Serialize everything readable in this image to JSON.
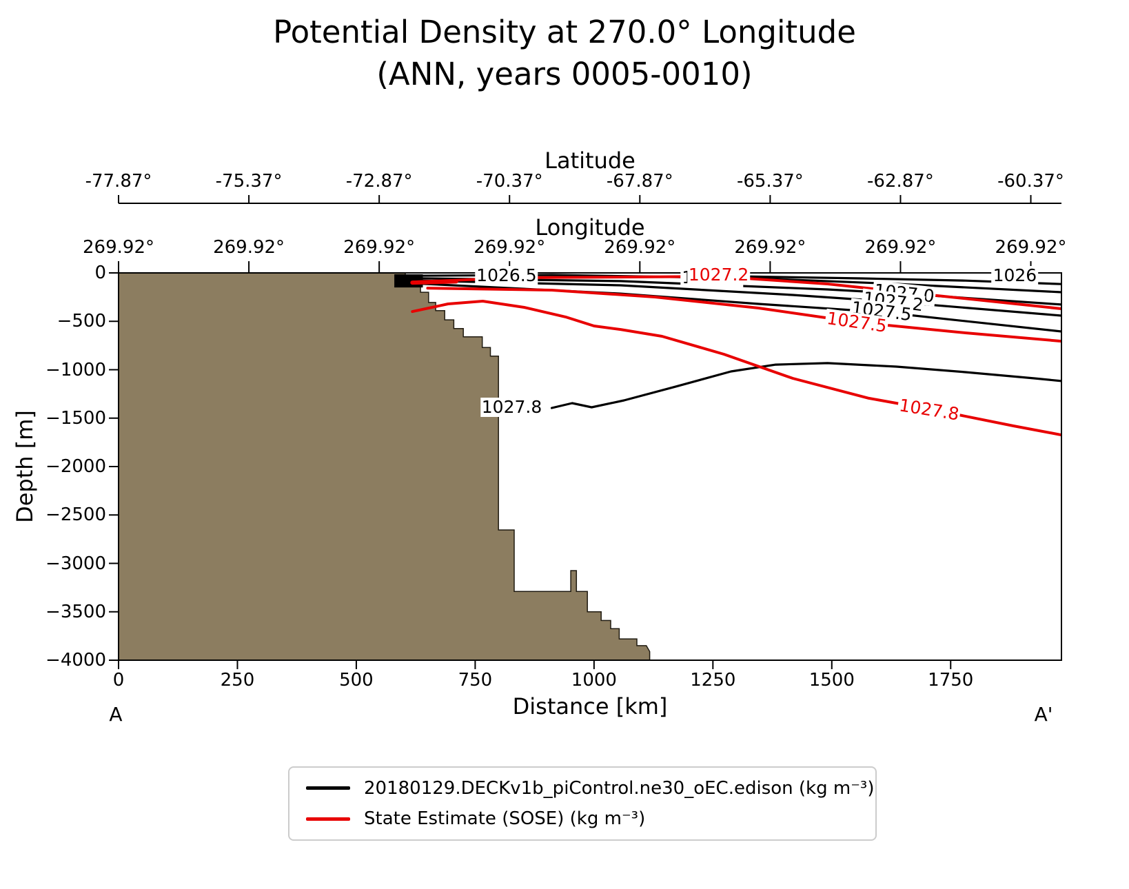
{
  "chart_data": {
    "type": "contour-section",
    "title": "Potential Density at 270.0° Longitude",
    "subtitle": "(ANN, years 0005-0010)",
    "axes": {
      "latitude": {
        "label": "Latitude",
        "ticks": [
          "-77.87°",
          "-75.37°",
          "-72.87°",
          "-70.37°",
          "-67.87°",
          "-65.37°",
          "-62.87°",
          "-60.37°"
        ]
      },
      "longitude": {
        "label": "Longitude",
        "ticks": [
          "269.92°",
          "269.92°",
          "269.92°",
          "269.92°",
          "269.92°",
          "269.92°",
          "269.92°",
          "269.92°"
        ]
      },
      "depth": {
        "label": "Depth [m]",
        "ticks": [
          "0",
          "−500",
          "−1000",
          "−1500",
          "−2000",
          "−2500",
          "−3000",
          "−3500",
          "−4000"
        ],
        "range_m": [
          0,
          -4000
        ]
      },
      "distance": {
        "label": "Distance [km]",
        "ticks": [
          "0",
          "250",
          "500",
          "750",
          "1000",
          "1250",
          "1500",
          "1750"
        ],
        "tick_values_km": [
          0,
          250,
          500,
          750,
          1000,
          1250,
          1500,
          1750
        ],
        "range_km": [
          0,
          1983
        ],
        "endpoint_labels": [
          "A",
          "A'"
        ]
      }
    },
    "legend": {
      "entries": [
        {
          "label": "20180129.DECKv1b_piControl.ne30_oEC.edison (kg m⁻³)",
          "color": "#000000"
        },
        {
          "label": "State Estimate (SOSE) (kg m⁻³)",
          "color": "#e80000"
        }
      ]
    },
    "bathymetry": {
      "color": "#8c7d60",
      "outline": "#1f1a10",
      "polygon_km_m": [
        [
          0,
          0
        ],
        [
          603,
          0
        ],
        [
          603,
          -110
        ],
        [
          635,
          -110
        ],
        [
          635,
          -200
        ],
        [
          652,
          -200
        ],
        [
          652,
          -305
        ],
        [
          667,
          -305
        ],
        [
          667,
          -390
        ],
        [
          686,
          -390
        ],
        [
          686,
          -485
        ],
        [
          705,
          -485
        ],
        [
          705,
          -575
        ],
        [
          725,
          -575
        ],
        [
          725,
          -660
        ],
        [
          765,
          -660
        ],
        [
          765,
          -770
        ],
        [
          782,
          -770
        ],
        [
          782,
          -860
        ],
        [
          799,
          -860
        ],
        [
          799,
          -2655
        ],
        [
          832,
          -2655
        ],
        [
          832,
          -3290
        ],
        [
          841,
          -3290
        ],
        [
          951,
          -3290
        ],
        [
          951,
          -3075
        ],
        [
          963,
          -3075
        ],
        [
          963,
          -3290
        ],
        [
          986,
          -3290
        ],
        [
          986,
          -3500
        ],
        [
          1015,
          -3500
        ],
        [
          1015,
          -3590
        ],
        [
          1035,
          -3590
        ],
        [
          1035,
          -3675
        ],
        [
          1053,
          -3675
        ],
        [
          1053,
          -3780
        ],
        [
          1090,
          -3780
        ],
        [
          1090,
          -3850
        ],
        [
          1110,
          -3850
        ],
        [
          1117,
          -3910
        ],
        [
          1117,
          -4000
        ],
        [
          0,
          -4000
        ]
      ]
    },
    "clusters": [
      {
        "color": "#000000",
        "polygon_km_m": [
          [
            580,
            -14
          ],
          [
            640,
            -14
          ],
          [
            640,
            -150
          ],
          [
            580,
            -150
          ]
        ]
      }
    ],
    "contours": [
      {
        "series": "model",
        "value": "1026",
        "color": "#000000",
        "width": 3.2,
        "points_km_m": [
          [
            1316,
            -36
          ],
          [
            1563,
            -57
          ],
          [
            1781,
            -80
          ],
          [
            1983,
            -115
          ]
        ]
      },
      {
        "series": "model",
        "value": "1026.5",
        "color": "#000000",
        "width": 3.2,
        "points_km_m": [
          [
            608,
            -30
          ],
          [
            911,
            -21
          ],
          [
            1346,
            -57
          ],
          [
            1636,
            -114
          ],
          [
            1983,
            -199
          ]
        ]
      },
      {
        "series": "model",
        "value": "1027.0",
        "color": "#000000",
        "width": 3.2,
        "points_km_m": [
          [
            615,
            -55
          ],
          [
            1056,
            -85
          ],
          [
            1491,
            -171
          ],
          [
            1650,
            -214
          ],
          [
            1983,
            -327
          ]
        ]
      },
      {
        "series": "model",
        "value": "1027.2",
        "color": "#000000",
        "width": 3.2,
        "points_km_m": [
          [
            622,
            -78
          ],
          [
            1056,
            -128
          ],
          [
            1418,
            -228
          ],
          [
            1631,
            -299
          ],
          [
            1983,
            -441
          ]
        ]
      },
      {
        "series": "model",
        "value": "1027.5",
        "color": "#000000",
        "width": 3.2,
        "points_km_m": [
          [
            630,
            -110
          ],
          [
            1056,
            -214
          ],
          [
            1346,
            -320
          ],
          [
            1607,
            -406
          ],
          [
            1983,
            -605
          ]
        ]
      },
      {
        "series": "model",
        "value": "1027.8",
        "color": "#000000",
        "width": 3.2,
        "points_km_m": [
          [
            911,
            -1395
          ],
          [
            954,
            -1345
          ],
          [
            995,
            -1388
          ],
          [
            1063,
            -1317
          ],
          [
            1172,
            -1174
          ],
          [
            1288,
            -1018
          ],
          [
            1382,
            -947
          ],
          [
            1491,
            -932
          ],
          [
            1636,
            -968
          ],
          [
            1781,
            -1025
          ],
          [
            1926,
            -1089
          ],
          [
            1983,
            -1117
          ]
        ]
      },
      {
        "series": "sose",
        "value": "1027.2",
        "color": "#e80000",
        "width": 4,
        "points_km_m": [
          [
            621,
            -93
          ],
          [
            838,
            -50
          ],
          [
            1258,
            -36
          ],
          [
            1491,
            -114
          ],
          [
            1708,
            -228
          ],
          [
            1983,
            -370
          ]
        ]
      },
      {
        "series": "sose",
        "value": "1027.5",
        "color": "#e80000",
        "width": 4,
        "points_km_m": [
          [
            650,
            -157
          ],
          [
            911,
            -178
          ],
          [
            1128,
            -249
          ],
          [
            1346,
            -363
          ],
          [
            1556,
            -512
          ],
          [
            1781,
            -619
          ],
          [
            1983,
            -705
          ]
        ]
      },
      {
        "series": "sose",
        "value": "1027.8",
        "color": "#e80000",
        "width": 4,
        "points_km_m": [
          [
            618,
            -399
          ],
          [
            693,
            -320
          ],
          [
            766,
            -292
          ],
          [
            853,
            -356
          ],
          [
            940,
            -455
          ],
          [
            1000,
            -548
          ],
          [
            1056,
            -584
          ],
          [
            1143,
            -655
          ],
          [
            1273,
            -840
          ],
          [
            1418,
            -1089
          ],
          [
            1578,
            -1295
          ],
          [
            1723,
            -1423
          ],
          [
            1882,
            -1580
          ],
          [
            1983,
            -1673
          ]
        ]
      },
      {
        "series": "sose",
        "value": "surface-bundle",
        "color": "#e80000",
        "width": 6,
        "points_km_m": [
          [
            618,
            -100
          ],
          [
            710,
            -88
          ]
        ]
      }
    ],
    "contour_labels": [
      {
        "text": "1026.5",
        "color": "#000000",
        "x_km": 816,
        "depth_m": -30,
        "rot": 0
      },
      {
        "text": "1027.2",
        "color": "#000000",
        "x_km": 1248,
        "depth_m": -48,
        "rot": 0
      },
      {
        "text": "1027.2",
        "color": "#e80000",
        "x_km": 1262,
        "depth_m": -22,
        "rot": 0
      },
      {
        "text": "1026",
        "color": "#000000",
        "x_km": 1885,
        "depth_m": -30,
        "rot": 0
      },
      {
        "text": "1027.0",
        "color": "#000000",
        "x_km": 1652,
        "depth_m": -210,
        "rot": 6
      },
      {
        "text": "1027.2",
        "color": "#000000",
        "x_km": 1630,
        "depth_m": -300,
        "rot": 7
      },
      {
        "text": "1027.5",
        "color": "#000000",
        "x_km": 1605,
        "depth_m": -400,
        "rot": 7
      },
      {
        "text": "1027.5",
        "color": "#e80000",
        "x_km": 1553,
        "depth_m": -510,
        "rot": 8
      },
      {
        "text": "1027.8",
        "color": "#000000",
        "x_km": 827,
        "depth_m": -1385,
        "rot": 0
      },
      {
        "text": "1027.8",
        "color": "#e80000",
        "x_km": 1705,
        "depth_m": -1415,
        "rot": 9
      }
    ]
  }
}
